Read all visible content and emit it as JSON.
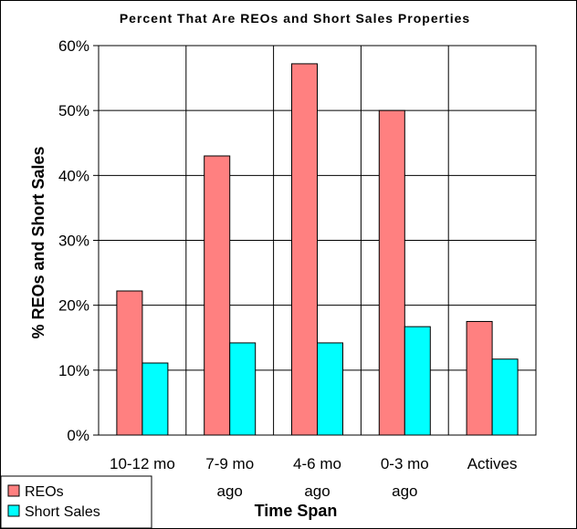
{
  "chart_data": {
    "type": "bar",
    "title": "Percent That Are REOs and Short Sales Properties",
    "xlabel": "Time Span",
    "ylabel": "% REOs and Short Sales",
    "categories": [
      [
        "10-12 mo"
      ],
      [
        "7-9 mo",
        "ago"
      ],
      [
        "4-6 mo",
        "ago"
      ],
      [
        "0-3 mo",
        "ago"
      ],
      [
        "Actives"
      ]
    ],
    "series": [
      {
        "name": "REOs",
        "color": "#ff8080",
        "values": [
          22.2,
          43.0,
          57.2,
          50.0,
          17.5
        ]
      },
      {
        "name": "Short Sales",
        "color": "#00ffff",
        "values": [
          11.1,
          14.2,
          14.2,
          16.7,
          11.7
        ]
      }
    ],
    "ylim": [
      0,
      60
    ],
    "yticks": [
      "0%",
      "10%",
      "20%",
      "30%",
      "40%",
      "50%",
      "60%"
    ],
    "grid": true,
    "legend_position": "bottom-left"
  }
}
